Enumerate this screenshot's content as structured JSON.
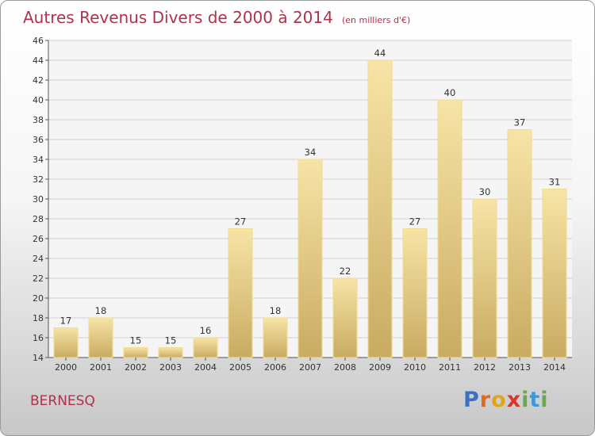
{
  "header": {
    "title": "Autres Revenus Divers de 2000 à 2014",
    "unit": "(en milliers d'€)"
  },
  "commune": "BERNESQ",
  "logo": {
    "text": "Proxiti"
  },
  "colors": {
    "title": "#b0324a",
    "bar_light": "#f7e4a6",
    "bar_dark": "#c9ab62"
  },
  "chart_data": {
    "type": "bar",
    "title": "Autres Revenus Divers de 2000 à 2014",
    "subtitle": "(en milliers d'€)",
    "categories": [
      "2000",
      "2001",
      "2002",
      "2003",
      "2004",
      "2005",
      "2006",
      "2007",
      "2008",
      "2009",
      "2010",
      "2011",
      "2012",
      "2013",
      "2014"
    ],
    "values": [
      17,
      18,
      15,
      15,
      16,
      27,
      18,
      34,
      22,
      44,
      27,
      40,
      30,
      37,
      31
    ],
    "data_labels": [
      "17",
      "18",
      "15",
      "15",
      "16",
      "27",
      "18",
      "34",
      "22",
      "44",
      "27",
      "40",
      "30",
      "37",
      "31"
    ],
    "yticks": [
      "14",
      "16",
      "18",
      "20",
      "22",
      "24",
      "26",
      "28",
      "30",
      "32",
      "34",
      "36",
      "38",
      "40",
      "42",
      "44",
      "46"
    ],
    "ylim": [
      14,
      46
    ],
    "xlabel": "",
    "ylabel": "",
    "grid": "horizontal",
    "legend": "none"
  }
}
